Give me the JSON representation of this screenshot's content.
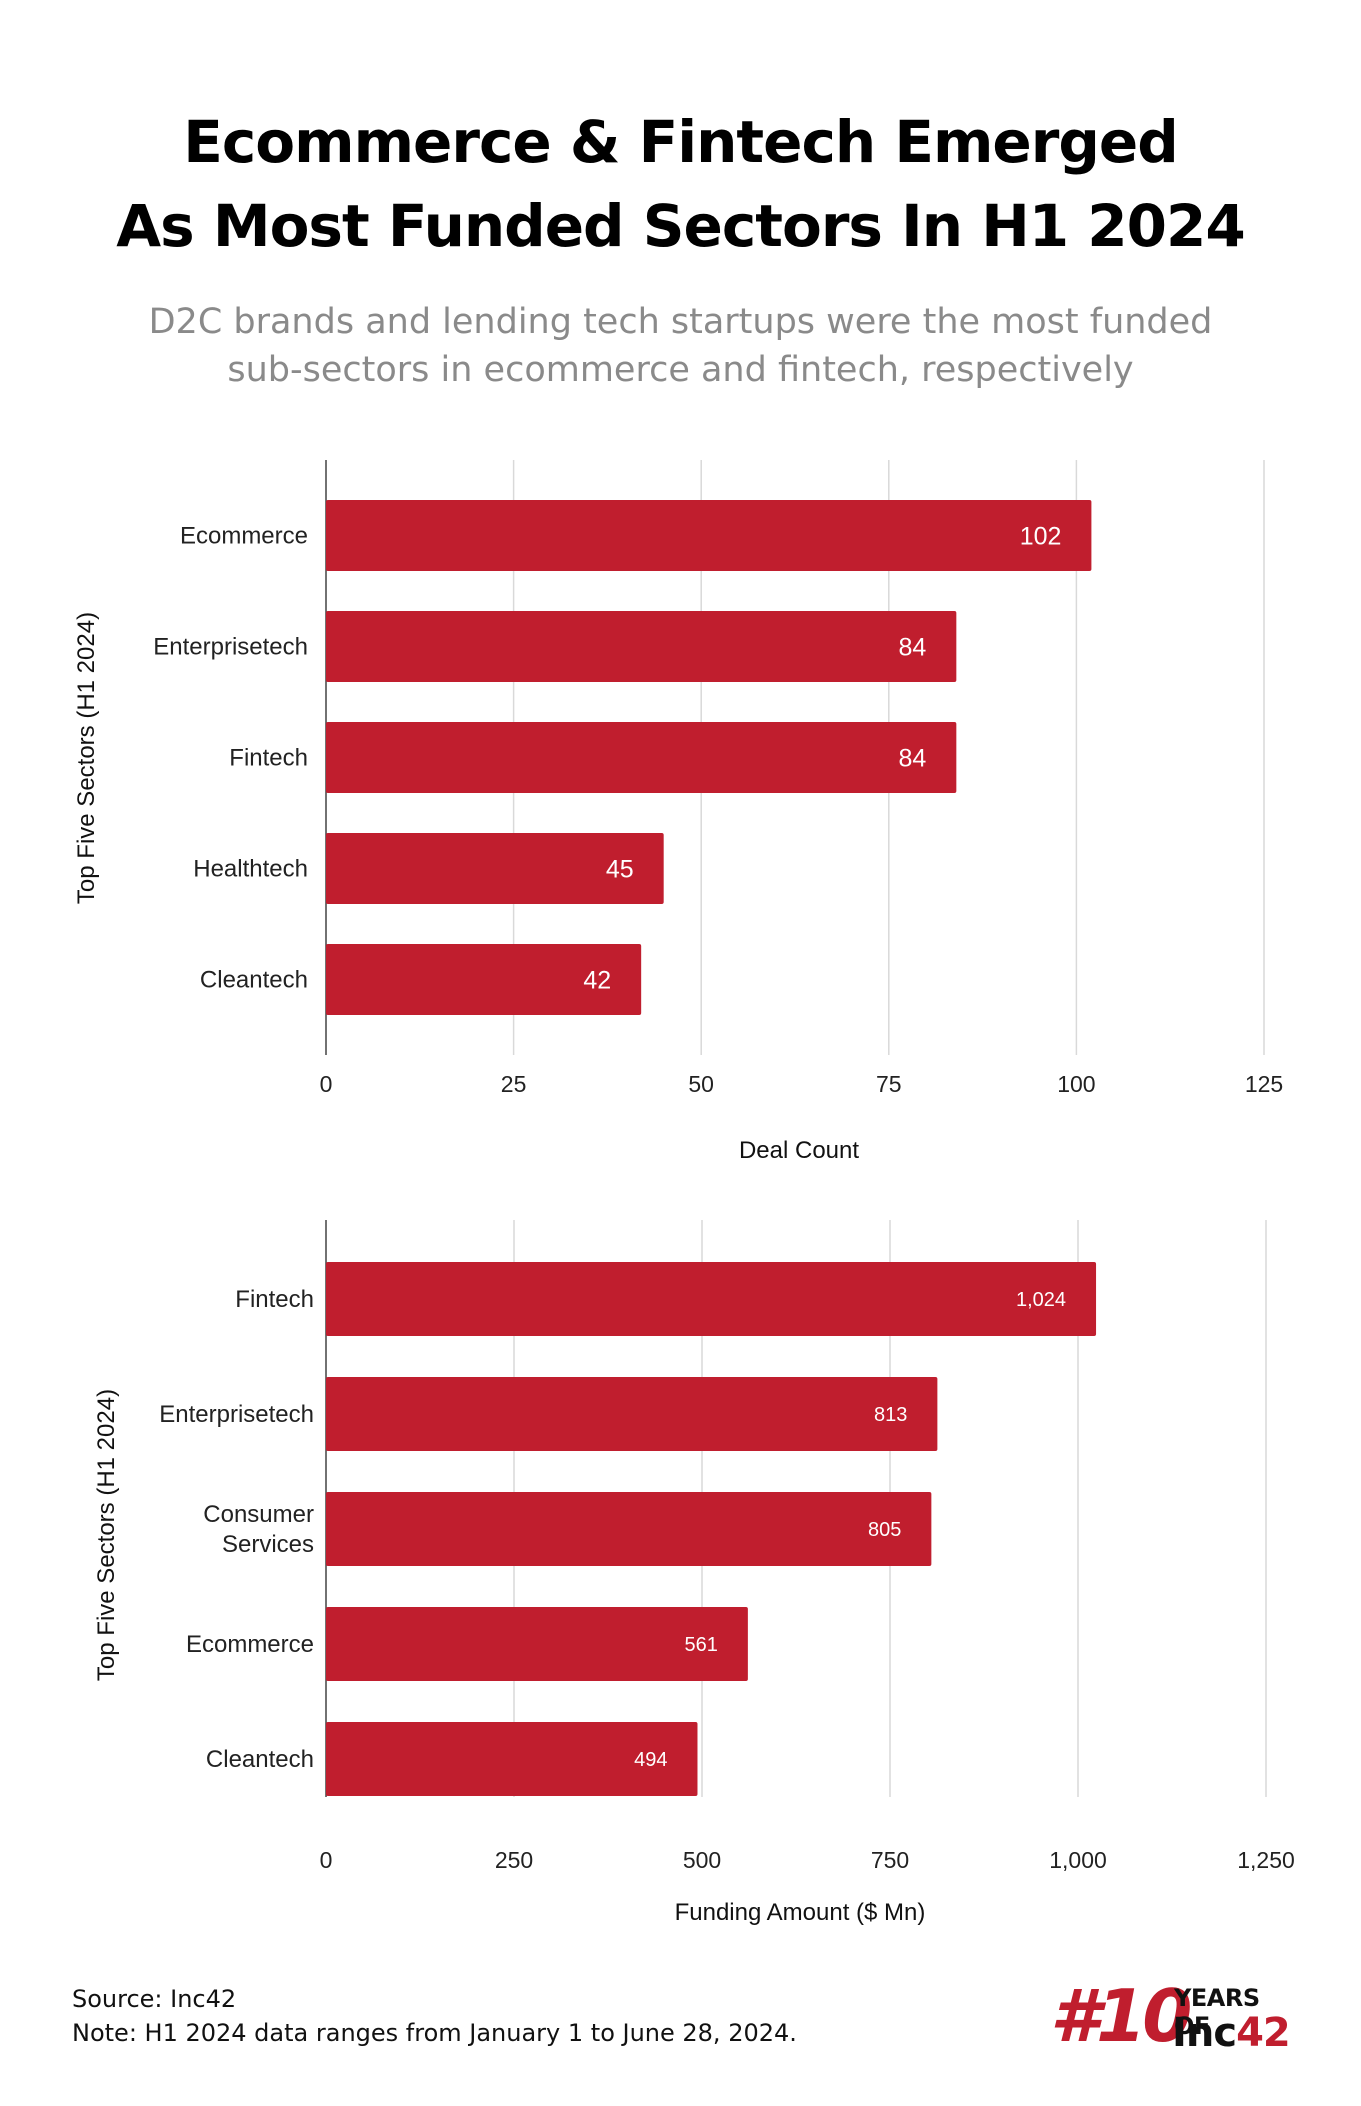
{
  "header": {
    "title_line1": "Ecommerce & Fintech Emerged",
    "title_line2": "As Most Funded Sectors In H1 2024",
    "subtitle_line1": "D2C brands and lending tech startups were the most funded",
    "subtitle_line2": "sub-sectors in ecommerce and fintech, respectively"
  },
  "colors": {
    "bar": "#c01e2e",
    "grid": "#d9d9d9",
    "axis": "#444444"
  },
  "chart_data": [
    {
      "type": "bar",
      "orientation": "horizontal",
      "categories": [
        "Ecommerce",
        "Enterprisetech",
        "Fintech",
        "Healthtech",
        "Cleantech"
      ],
      "values": [
        102,
        84,
        84,
        45,
        42
      ],
      "value_labels": [
        "102",
        "84",
        "84",
        "45",
        "42"
      ],
      "xlabel": "Deal Count",
      "ylabel": "Top Five Sectors (H1 2024)",
      "xlim": [
        0,
        125
      ],
      "xticks": [
        0,
        25,
        50,
        75,
        100,
        125
      ],
      "xtick_labels": [
        "0",
        "25",
        "50",
        "75",
        "100",
        "125"
      ],
      "grid": true
    },
    {
      "type": "bar",
      "orientation": "horizontal",
      "categories": [
        [
          "Fintech"
        ],
        [
          "Enterprisetech"
        ],
        [
          "Consumer",
          "Services"
        ],
        [
          "Ecommerce"
        ],
        [
          "Cleantech"
        ]
      ],
      "values": [
        1024,
        813,
        805,
        561,
        494
      ],
      "value_labels": [
        "1,024",
        "813",
        "805",
        "561",
        "494"
      ],
      "xlabel": "Funding Amount ($ Mn)",
      "ylabel": "Top Five Sectors (H1 2024)",
      "xlim": [
        0,
        1250
      ],
      "xticks": [
        0,
        250,
        500,
        750,
        1000,
        1250
      ],
      "xtick_labels": [
        "0",
        "250",
        "500",
        "750",
        "1,000",
        "1,250"
      ],
      "grid": true
    }
  ],
  "footer": {
    "source": "Source: Inc42",
    "note": "Note: H1 2024 data ranges from January 1 to June 28, 2024."
  },
  "logo": {
    "mark": "#10",
    "years": "YEARS OF",
    "brand_main": "Inc",
    "brand_accent": "42"
  }
}
